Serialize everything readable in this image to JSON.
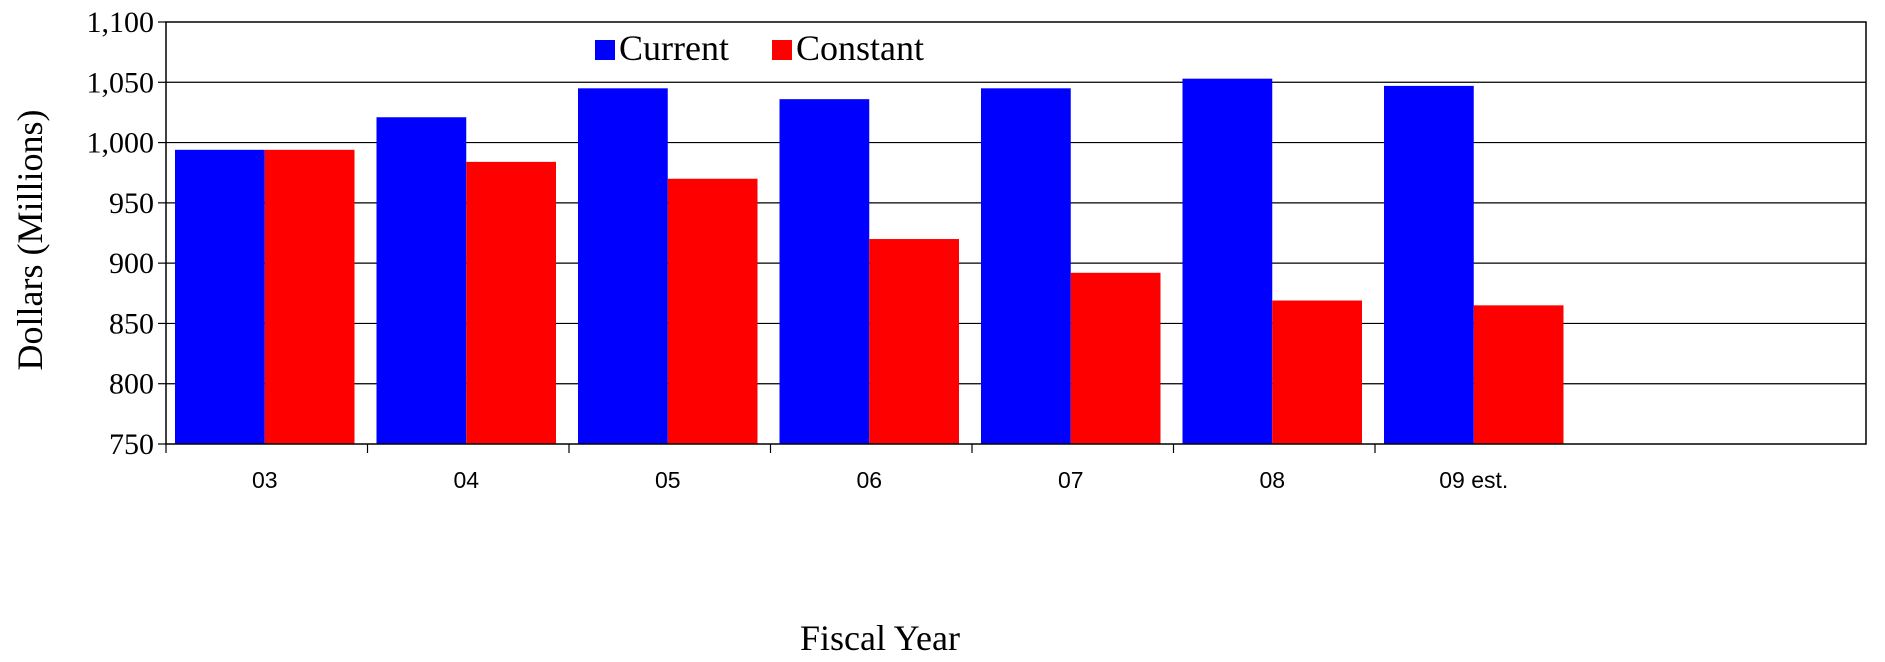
{
  "chart_data": {
    "type": "bar",
    "title": "",
    "xlabel": "Fiscal Year",
    "ylabel": "Dollars (Millions)",
    "ylim": [
      750,
      1100
    ],
    "yticks": [
      750,
      800,
      850,
      900,
      950,
      1000,
      1050,
      1100
    ],
    "ytick_labels": [
      "750",
      "800",
      "850",
      "900",
      "950",
      "1,000",
      "1,050",
      "1,100"
    ],
    "categories": [
      "03",
      "04",
      "05",
      "06",
      "07",
      "08",
      "09 est."
    ],
    "series": [
      {
        "name": "Current",
        "color": "#0000FF",
        "values": [
          994,
          1021,
          1045,
          1036,
          1045,
          1053,
          1047
        ]
      },
      {
        "name": "Constant",
        "color": "#FF0000",
        "values": [
          994,
          984,
          970,
          920,
          892,
          869,
          865
        ]
      }
    ],
    "grid": true,
    "legend_position": "top-center"
  }
}
